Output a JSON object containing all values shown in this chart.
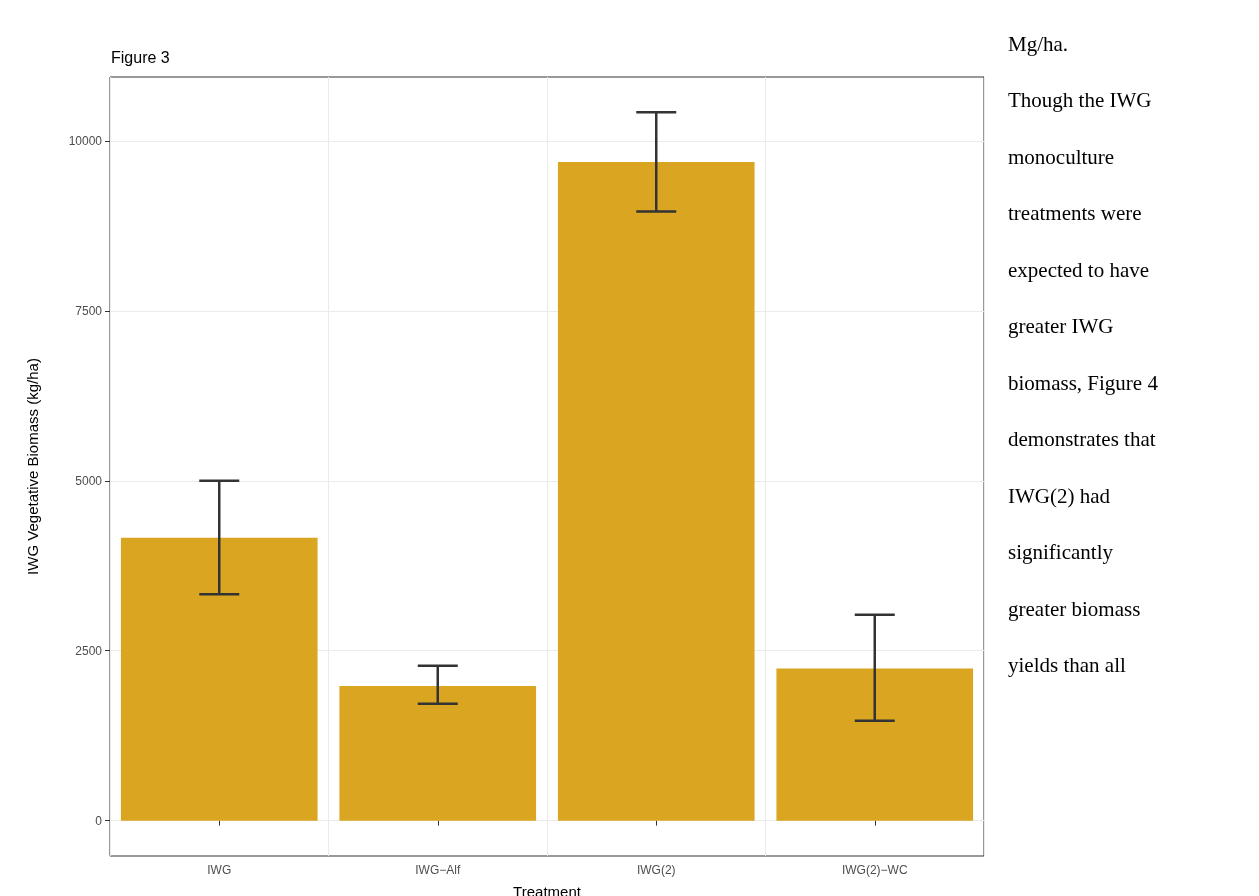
{
  "chart_data": {
    "type": "bar",
    "title": "Figure 3",
    "xlabel": "Treatment",
    "ylabel": "IWG Vegetative Biomass (kg/ha)",
    "categories": [
      "IWG",
      "IWG−Alf",
      "IWG(2)",
      "IWG(2)−WC"
    ],
    "values": [
      4160,
      1980,
      9690,
      2240
    ],
    "errors": [
      [
        3330,
        5000
      ],
      [
        1720,
        2280
      ],
      [
        8960,
        10420
      ],
      [
        1470,
        3030
      ]
    ],
    "color": "#daa520",
    "ylim": [
      -520,
      10940
    ],
    "yticks": [
      0,
      2500,
      5000,
      7500,
      10000
    ],
    "grid": true,
    "annotations": [
      "Mg/ha.",
      "Though the IWG",
      "monoculture",
      "treatments were",
      "expected to have",
      "greater IWG",
      "biomass, Figure 4",
      "demonstrates that",
      "IWG(2) had",
      "significantly",
      "greater biomass",
      "yields than all"
    ]
  }
}
